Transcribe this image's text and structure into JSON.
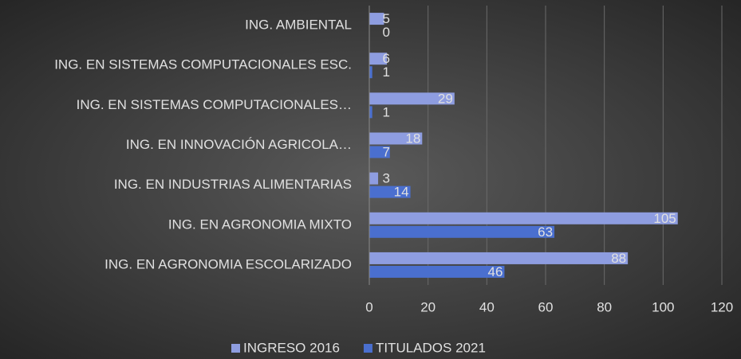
{
  "chart_data": {
    "type": "bar",
    "orientation": "horizontal",
    "categories": [
      "ING. AMBIENTAL",
      "ING. EN SISTEMAS COMPUTACIONALES ESC.",
      "ING. EN SISTEMAS COMPUTACIONALES…",
      "ING. EN INNOVACIÓN AGRICOLA…",
      "ING. EN INDUSTRIAS ALIMENTARIAS",
      "ING. EN AGRONOMIA MIXTO",
      "ING. EN AGRONOMIA ESCOLARIZADO"
    ],
    "series": [
      {
        "name": "INGRESO 2016",
        "color": "#8e9de0",
        "values": [
          5,
          6,
          29,
          18,
          3,
          105,
          88
        ]
      },
      {
        "name": "TITULADOS 2021",
        "color": "#4a6fcf",
        "values": [
          0,
          1,
          1,
          7,
          14,
          63,
          46
        ]
      }
    ],
    "xlim": [
      0,
      120
    ],
    "xticks": [
      0,
      20,
      40,
      60,
      80,
      100,
      120
    ],
    "grid": true,
    "legend": "bottom"
  }
}
